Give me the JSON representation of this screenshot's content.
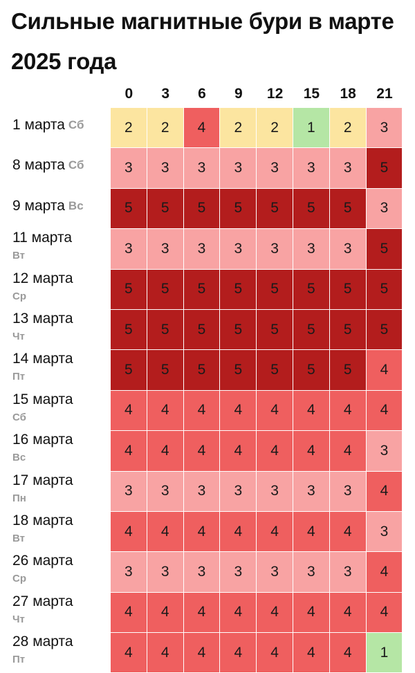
{
  "title": "Сильные магнитные бури в марте 2025 года",
  "hours": [
    "0",
    "3",
    "6",
    "9",
    "12",
    "15",
    "18",
    "21"
  ],
  "colors": {
    "1": "#b5e6a5",
    "2": "#fce5a0",
    "3": "#f8a3a3",
    "4": "#ef5f5f",
    "5": "#b31d1d"
  },
  "rows": [
    {
      "date": "1 марта",
      "day": "Сб",
      "layout": "inline",
      "values": [
        2,
        2,
        4,
        2,
        2,
        1,
        2,
        3
      ]
    },
    {
      "date": "8 марта",
      "day": "Сб",
      "layout": "inline",
      "values": [
        3,
        3,
        3,
        3,
        3,
        3,
        3,
        5
      ]
    },
    {
      "date": "9 марта",
      "day": "Вс",
      "layout": "inline",
      "values": [
        5,
        5,
        5,
        5,
        5,
        5,
        5,
        3
      ]
    },
    {
      "date": "11 марта",
      "day": "Вт",
      "layout": "stacked",
      "values": [
        3,
        3,
        3,
        3,
        3,
        3,
        3,
        5
      ]
    },
    {
      "date": "12 марта",
      "day": "Ср",
      "layout": "stacked",
      "values": [
        5,
        5,
        5,
        5,
        5,
        5,
        5,
        5
      ]
    },
    {
      "date": "13 марта",
      "day": "Чт",
      "layout": "stacked",
      "values": [
        5,
        5,
        5,
        5,
        5,
        5,
        5,
        5
      ]
    },
    {
      "date": "14 марта",
      "day": "Пт",
      "layout": "stacked",
      "values": [
        5,
        5,
        5,
        5,
        5,
        5,
        5,
        4
      ]
    },
    {
      "date": "15 марта",
      "day": "Сб",
      "layout": "stacked",
      "values": [
        4,
        4,
        4,
        4,
        4,
        4,
        4,
        4
      ]
    },
    {
      "date": "16 марта",
      "day": "Вс",
      "layout": "stacked",
      "values": [
        4,
        4,
        4,
        4,
        4,
        4,
        4,
        3
      ]
    },
    {
      "date": "17 марта",
      "day": "Пн",
      "layout": "stacked",
      "values": [
        3,
        3,
        3,
        3,
        3,
        3,
        3,
        4
      ]
    },
    {
      "date": "18 марта",
      "day": "Вт",
      "layout": "stacked",
      "values": [
        4,
        4,
        4,
        4,
        4,
        4,
        4,
        3
      ]
    },
    {
      "date": "26 марта",
      "day": "Ср",
      "layout": "stacked",
      "values": [
        3,
        3,
        3,
        3,
        3,
        3,
        3,
        4
      ]
    },
    {
      "date": "27 марта",
      "day": "Чт",
      "layout": "stacked",
      "values": [
        4,
        4,
        4,
        4,
        4,
        4,
        4,
        4
      ]
    },
    {
      "date": "28 марта",
      "day": "Пт",
      "layout": "stacked",
      "values": [
        4,
        4,
        4,
        4,
        4,
        4,
        4,
        1
      ]
    }
  ]
}
